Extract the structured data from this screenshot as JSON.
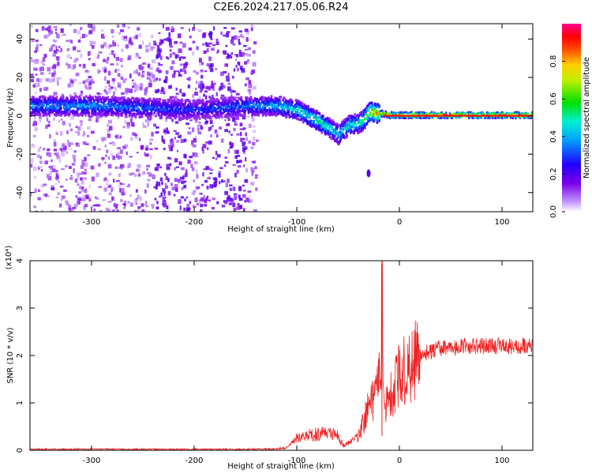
{
  "title": "C2E6.2024.217.05.06.R24",
  "colors": {
    "snr_line": "#ee2222",
    "axis": "#000000"
  },
  "chart_data": [
    {
      "type": "heatmap",
      "xlabel": "Height of straight line (km)",
      "ylabel": "Frequency (Hz)",
      "xlim": [
        -360,
        130
      ],
      "ylim": [
        -50,
        48
      ],
      "x_ticks": [
        -300,
        -200,
        -100,
        0,
        100
      ],
      "y_ticks": [
        -40,
        -20,
        0,
        20,
        40
      ],
      "x_tick_labels": [
        "-300",
        "-200",
        "-100",
        "0",
        "100"
      ],
      "y_tick_labels": [
        "-40",
        "-20",
        "0",
        "20",
        "40"
      ],
      "colorbar": {
        "label": "Normalized spectral amplitude",
        "range": [
          0.0,
          1.0
        ],
        "ticks": [
          0.0,
          0.2,
          0.4,
          0.6,
          0.8
        ],
        "tick_labels": [
          "0.0",
          "0.2",
          "0.4",
          "0.6",
          "0.8"
        ]
      },
      "ridge": {
        "x": [
          -360,
          -300,
          -250,
          -200,
          -150,
          -120,
          -100,
          -90,
          -80,
          -70,
          -60,
          -50,
          -40,
          -35,
          -30,
          -20,
          -10,
          0,
          50,
          100,
          130
        ],
        "y": [
          5,
          5,
          4,
          3,
          5,
          5,
          3,
          0,
          -3,
          -6,
          -10,
          -5,
          -4,
          -2,
          2,
          1,
          0,
          0,
          0,
          0,
          0
        ],
        "amplitude": [
          0.4,
          0.4,
          0.35,
          0.3,
          0.35,
          0.45,
          0.5,
          0.55,
          0.55,
          0.5,
          0.45,
          0.5,
          0.5,
          0.6,
          0.75,
          0.85,
          0.9,
          0.95,
          0.95,
          0.95,
          0.95
        ]
      }
    },
    {
      "type": "line",
      "xlabel": "Height of straight line (km)",
      "ylabel": "SNR (10 * v/v)",
      "y_multiplier": "(x10⁴)",
      "xlim": [
        -360,
        130
      ],
      "ylim": [
        0,
        4
      ],
      "x_ticks": [
        -300,
        -200,
        -100,
        0,
        100
      ],
      "y_ticks": [
        0,
        1,
        2,
        3,
        4
      ],
      "x_tick_labels": [
        "-300",
        "-200",
        "-100",
        "0",
        "100"
      ],
      "y_tick_labels": [
        "0",
        "1",
        "2",
        "3",
        "4"
      ],
      "series": [
        {
          "x": [
            -360,
            -300,
            -250,
            -200,
            -150,
            -120,
            -110,
            -100,
            -90,
            -80,
            -70,
            -60,
            -55,
            -50,
            -45,
            -40,
            -35,
            -30,
            -25,
            -22,
            -20,
            -18,
            -17,
            -16,
            -15,
            -12,
            -10,
            -5,
            0,
            10,
            20,
            30,
            40,
            50,
            60,
            70,
            80,
            90,
            100,
            110,
            120,
            130
          ],
          "y": [
            0.02,
            0.02,
            0.02,
            0.02,
            0.02,
            0.03,
            0.05,
            0.25,
            0.3,
            0.35,
            0.35,
            0.3,
            0.1,
            0.15,
            0.2,
            0.3,
            0.6,
            0.9,
            1.1,
            1.3,
            1.5,
            1.4,
            4.0,
            1.4,
            1.2,
            1.0,
            1.1,
            1.3,
            1.6,
            1.8,
            2.0,
            2.1,
            2.15,
            2.15,
            2.2,
            2.2,
            2.2,
            2.2,
            2.2,
            2.2,
            2.2,
            2.2
          ]
        }
      ]
    }
  ]
}
